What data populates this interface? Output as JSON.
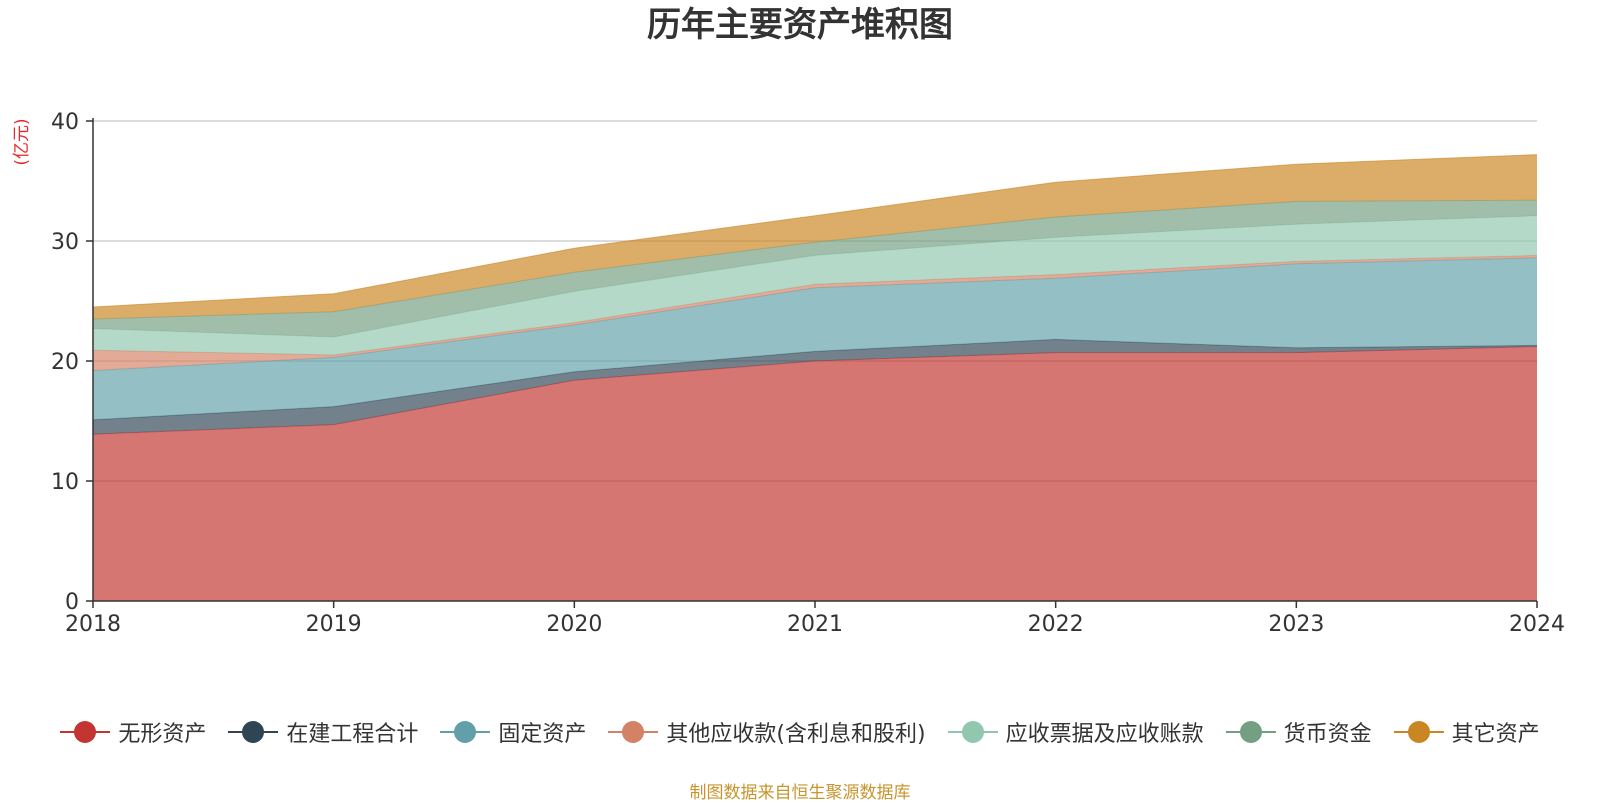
{
  "title": "历年主要资产堆积图",
  "source_note": "制图数据来自恒生聚源数据库",
  "colors": {
    "axis": "#333333",
    "grid": "#c8c8c8",
    "unit_label": "#e8262a",
    "tick_text": "#333333"
  },
  "chart_data": {
    "type": "area",
    "stacked": true,
    "title": "历年主要资产堆积图",
    "ylabel": "(亿元)",
    "xlabel": "",
    "x": [
      "2018",
      "2019",
      "2020",
      "2021",
      "2022",
      "2023",
      "2024"
    ],
    "ylim": [
      0,
      40
    ],
    "yticks": [
      0,
      10,
      20,
      30,
      40
    ],
    "grid": true,
    "legend_position": "bottom",
    "series": [
      {
        "name": "无形资产",
        "color": "#c23531",
        "values": [
          13.9,
          14.7,
          18.4,
          20.0,
          20.7,
          20.7,
          21.2
        ]
      },
      {
        "name": "在建工程合计",
        "color": "#2f4554",
        "values": [
          1.2,
          1.5,
          0.7,
          0.8,
          1.1,
          0.4,
          0.1
        ]
      },
      {
        "name": "固定资产",
        "color": "#61a0a8",
        "values": [
          4.1,
          4.1,
          3.9,
          5.3,
          5.1,
          7.0,
          7.3
        ]
      },
      {
        "name": "其他应收款(含利息和股利)",
        "color": "#d48265",
        "values": [
          1.7,
          0.2,
          0.2,
          0.3,
          0.3,
          0.2,
          0.2
        ]
      },
      {
        "name": "应收票据及应收账款",
        "color": "#91c7ae",
        "values": [
          1.8,
          1.5,
          2.6,
          2.4,
          3.1,
          3.1,
          3.3
        ]
      },
      {
        "name": "货币资金",
        "color": "#749f83",
        "values": [
          0.8,
          2.1,
          1.6,
          1.1,
          1.7,
          1.9,
          1.3
        ]
      },
      {
        "name": "其它资产",
        "color": "#ca8622",
        "values": [
          1.0,
          1.5,
          2.0,
          2.2,
          2.9,
          3.1,
          3.8
        ]
      }
    ]
  }
}
